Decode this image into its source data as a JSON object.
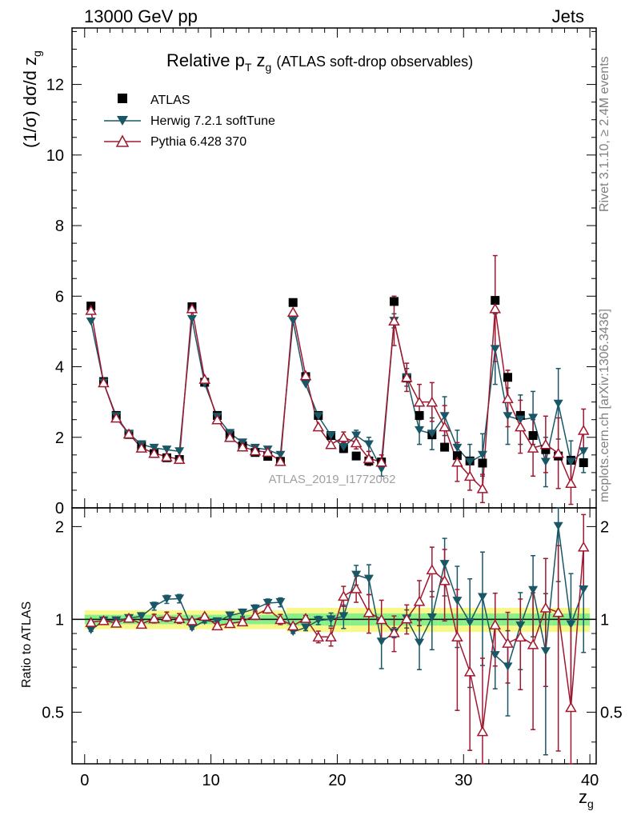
{
  "header": {
    "left": "13000 GeV pp",
    "right": "Jets"
  },
  "side_labels": {
    "rivet": "Rivet 3.1.10, ≥ 2.4M events",
    "mcplots": "mcplots.cern.ch [arXiv:1306.3436]"
  },
  "watermark": "ATLAS_2019_I1772062",
  "title": {
    "main": "Relative p",
    "main_sub": "T",
    "main_tail": " z",
    "main_tail_sub": "g",
    "paren": "(ATLAS soft-drop observables)"
  },
  "y_label": {
    "text": "(1/σ) dσ/d z",
    "sub": "g"
  },
  "ratio_y_label": "Ratio to ATLAS",
  "x_label": {
    "text": "z",
    "sub": "g"
  },
  "legend": [
    {
      "name": "ATLAS",
      "color": "#000000",
      "marker": "square"
    },
    {
      "name": "Herwig 7.2.1 softTune",
      "color": "#1a5766",
      "marker": "triangle-down"
    },
    {
      "name": "Pythia 6.428 370",
      "color": "#a01830",
      "marker": "triangle-up-open"
    }
  ],
  "chart_data": {
    "type": "scatter",
    "title": "Relative pT zg (ATLAS soft-drop observables)",
    "xlabel": "zg",
    "ylabel": "(1/σ) dσ/d zg",
    "xlim": [
      -1,
      40.5
    ],
    "ylim": [
      0,
      13.6
    ],
    "x_ticks": [
      0,
      10,
      20,
      30,
      40
    ],
    "y_ticks": [
      0,
      2,
      4,
      6,
      8,
      10,
      12
    ],
    "ratio_ylim": [
      0.34,
      2.3
    ],
    "ratio_ticks": [
      0.5,
      1,
      2
    ],
    "ratio_ylabel": "Ratio to ATLAS",
    "x": [
      0.5,
      1.5,
      2.5,
      3.5,
      4.5,
      5.5,
      6.5,
      7.5,
      8.5,
      9.5,
      10.5,
      11.5,
      12.5,
      13.5,
      14.5,
      15.5,
      16.5,
      17.5,
      18.5,
      19.5,
      20.5,
      21.5,
      22.5,
      23.5,
      24.5,
      25.5,
      26.5,
      27.5,
      28.5,
      29.5,
      30.5,
      31.5,
      32.5,
      33.5,
      34.5,
      35.5,
      36.5,
      37.5,
      38.5,
      39.5
    ],
    "series": [
      {
        "name": "ATLAS",
        "values": [
          5.72,
          3.58,
          2.62,
          2.08,
          1.76,
          1.54,
          1.42,
          1.37,
          5.7,
          3.56,
          2.62,
          2.06,
          1.76,
          1.57,
          1.46,
          1.32,
          5.82,
          3.72,
          2.62,
          2.05,
          1.68,
          1.47,
          1.33,
          1.3,
          5.85,
          3.68,
          2.62,
          2.07,
          1.72,
          1.48,
          1.33,
          1.27,
          5.88,
          3.7,
          2.62,
          2.05,
          1.65,
          1.47,
          1.35,
          1.28
        ]
      },
      {
        "name": "Herwig 7.2.1 softTune",
        "values": [
          5.28,
          3.55,
          2.6,
          2.1,
          1.8,
          1.7,
          1.65,
          1.6,
          5.35,
          3.52,
          2.58,
          2.12,
          1.85,
          1.7,
          1.65,
          1.5,
          5.3,
          3.5,
          2.6,
          2.05,
          1.72,
          2.05,
          1.8,
          1.1,
          5.3,
          3.7,
          2.2,
          2.1,
          2.6,
          1.7,
          1.3,
          1.5,
          4.5,
          2.6,
          2.5,
          2.55,
          1.3,
          2.95,
          1.3,
          1.6
        ],
        "errors": [
          0.05,
          0.05,
          0.05,
          0.05,
          0.05,
          0.05,
          0.05,
          0.05,
          0.06,
          0.05,
          0.05,
          0.05,
          0.05,
          0.05,
          0.05,
          0.05,
          0.06,
          0.08,
          0.08,
          0.1,
          0.15,
          0.15,
          0.2,
          0.2,
          0.2,
          0.25,
          0.4,
          0.45,
          0.55,
          0.5,
          0.5,
          0.6,
          1.0,
          0.8,
          0.7,
          0.75,
          0.7,
          1.0,
          0.6,
          0.6
        ]
      },
      {
        "name": "Pythia 6.428 370",
        "values": [
          5.6,
          3.55,
          2.55,
          2.1,
          1.7,
          1.55,
          1.45,
          1.38,
          5.65,
          3.65,
          2.5,
          2.0,
          1.73,
          1.62,
          1.58,
          1.32,
          5.55,
          3.75,
          2.3,
          1.8,
          2.0,
          1.85,
          1.4,
          1.3,
          5.3,
          3.7,
          3.0,
          3.0,
          2.3,
          1.3,
          0.9,
          0.55,
          5.65,
          3.1,
          2.3,
          1.7,
          1.8,
          1.55,
          0.7,
          2.2
        ],
        "errors": [
          0.05,
          0.05,
          0.05,
          0.05,
          0.05,
          0.05,
          0.05,
          0.05,
          0.06,
          0.05,
          0.05,
          0.05,
          0.05,
          0.05,
          0.05,
          0.05,
          0.08,
          0.08,
          0.1,
          0.12,
          0.15,
          0.18,
          0.2,
          0.2,
          0.7,
          0.4,
          0.5,
          0.55,
          0.6,
          0.55,
          0.4,
          0.4,
          1.5,
          0.8,
          0.75,
          0.8,
          0.8,
          1.0,
          0.6,
          0.6
        ]
      }
    ]
  }
}
